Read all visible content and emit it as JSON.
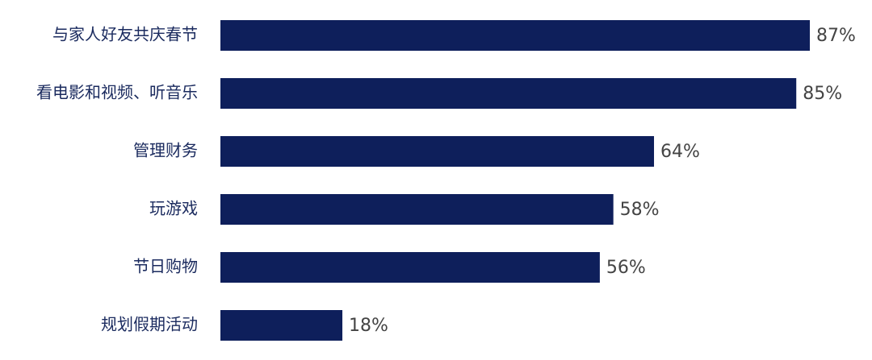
{
  "chart_data": {
    "type": "bar",
    "orientation": "horizontal",
    "color": "#0e1f5b",
    "categories": [
      "与家人好友共庆春节",
      "看电影和视频、听音乐",
      "管理财务",
      "玩游戏",
      "节日购物",
      "规划假期活动"
    ],
    "values": [
      87,
      85,
      64,
      58,
      56,
      18
    ],
    "value_labels": [
      "87%",
      "85%",
      "64%",
      "58%",
      "56%",
      "18%"
    ]
  }
}
